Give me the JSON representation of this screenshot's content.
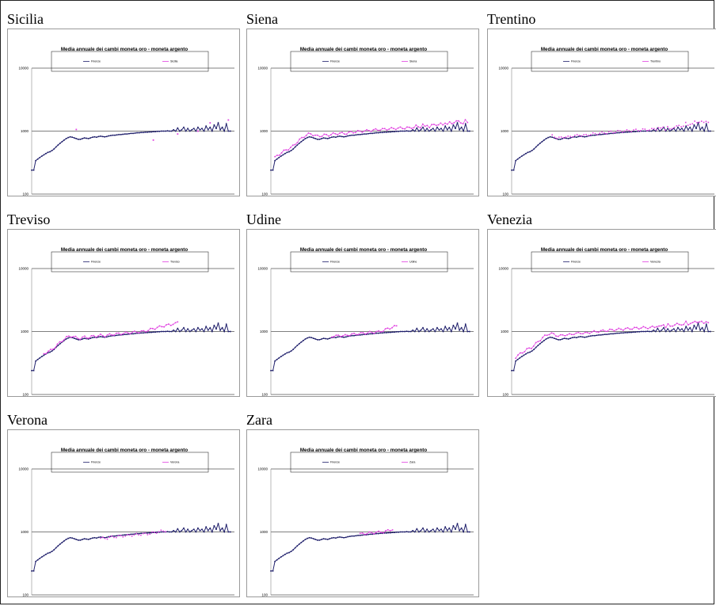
{
  "page": {
    "colors": {
      "firenze": "#1f1f6b",
      "region": "#e040e0",
      "grid": "#000000",
      "frame": "#222222"
    }
  },
  "chart_data": [
    {
      "type": "line",
      "panel_label": "Sicilia",
      "title": "Media annuale dei cambi moneta oro - moneta argento",
      "legend": [
        "Firenze",
        "Sicilia"
      ],
      "yscale": "log",
      "ylim": [
        100,
        10000
      ],
      "yticks": [
        "10000",
        "1000",
        "100"
      ],
      "series": [
        {
          "name": "Firenze",
          "style": "line-markers"
        },
        {
          "name": "Sicilia",
          "style": "sparse-points",
          "points": [
            [
              0.22,
              1060
            ],
            [
              0.6,
              720
            ],
            [
              0.72,
              900
            ],
            [
              0.82,
              1000
            ],
            [
              0.88,
              1350
            ],
            [
              0.97,
              1500
            ]
          ]
        }
      ]
    },
    {
      "type": "line",
      "panel_label": "Siena",
      "title": "Media annuale dei cambi moneta oro - moneta argento",
      "legend": [
        "Firenze",
        "Siena"
      ],
      "yscale": "log",
      "ylim": [
        100,
        10000
      ],
      "yticks": [
        "10000",
        "1000",
        "100"
      ],
      "series": [
        {
          "name": "Firenze",
          "style": "line-markers"
        },
        {
          "name": "Siena",
          "style": "dense-line",
          "range": [
            0.02,
            0.97
          ],
          "offset": 1.12,
          "end": 1500
        }
      ]
    },
    {
      "type": "line",
      "panel_label": "Trentino",
      "title": "Media annuale dei cambi moneta oro - moneta argento",
      "legend": [
        "Firenze",
        "Trentino"
      ],
      "yscale": "log",
      "ylim": [
        100,
        10000
      ],
      "yticks": [
        "10000",
        "1000",
        "100"
      ],
      "series": [
        {
          "name": "Firenze",
          "style": "line-markers"
        },
        {
          "name": "Trentino",
          "style": "scatter-range",
          "range": [
            0.2,
            0.97
          ],
          "offset": 1.05,
          "end": 1600
        }
      ]
    },
    {
      "type": "line",
      "panel_label": "Treviso",
      "title": "Media annuale dei cambi moneta oro - moneta argento",
      "legend": [
        "Firenze",
        "Treviso"
      ],
      "yscale": "log",
      "ylim": [
        100,
        10000
      ],
      "yticks": [
        "10000",
        "1000",
        "100"
      ],
      "series": [
        {
          "name": "Firenze",
          "style": "line-markers"
        },
        {
          "name": "Treviso",
          "style": "dense-line",
          "range": [
            0.06,
            0.72
          ],
          "offset": 1.05,
          "end": 1550
        }
      ]
    },
    {
      "type": "line",
      "panel_label": "Udine",
      "title": "Media annuale dei cambi moneta oro - moneta argento",
      "legend": [
        "Firenze",
        "Udine"
      ],
      "yscale": "log",
      "ylim": [
        100,
        10000
      ],
      "yticks": [
        "10000",
        "1000",
        "100"
      ],
      "series": [
        {
          "name": "Firenze",
          "style": "line-markers"
        },
        {
          "name": "Udine",
          "style": "dense-line",
          "range": [
            0.3,
            0.62
          ],
          "offset": 1.05,
          "end": 1350
        }
      ]
    },
    {
      "type": "line",
      "panel_label": "Venezia",
      "title": "Media annuale dei cambi moneta oro - moneta argento",
      "legend": [
        "Firenze",
        "Venezia"
      ],
      "yscale": "log",
      "ylim": [
        100,
        10000
      ],
      "yticks": [
        "10000",
        "1000",
        "100"
      ],
      "series": [
        {
          "name": "Firenze",
          "style": "line-markers"
        },
        {
          "name": "Venezia",
          "style": "dense-line",
          "range": [
            0.02,
            0.97
          ],
          "offset": 1.15,
          "end": 1500
        }
      ]
    },
    {
      "type": "line",
      "panel_label": "Verona",
      "title": "Media annuale dei cambi moneta oro - moneta argento",
      "legend": [
        "Firenze",
        "Verona"
      ],
      "yscale": "log",
      "ylim": [
        100,
        10000
      ],
      "yticks": [
        "10000",
        "1000",
        "100"
      ],
      "series": [
        {
          "name": "Firenze",
          "style": "line-markers"
        },
        {
          "name": "Verona",
          "style": "scatter-range",
          "range": [
            0.34,
            0.66
          ],
          "offset": 0.97,
          "end": 1100
        }
      ]
    },
    {
      "type": "line",
      "panel_label": "Zara",
      "title": "Media annuale dei cambi moneta oro - moneta argento",
      "legend": [
        "Firenze",
        "Zara"
      ],
      "yscale": "log",
      "ylim": [
        100,
        10000
      ],
      "yticks": [
        "10000",
        "1000",
        "100"
      ],
      "series": [
        {
          "name": "Firenze",
          "style": "line-markers"
        },
        {
          "name": "Zara",
          "style": "dense-line",
          "range": [
            0.44,
            0.6
          ],
          "offset": 1.05,
          "end": 1150
        }
      ]
    }
  ],
  "firenze_series": {
    "name": "Firenze",
    "points": [
      [
        0.0,
        240
      ],
      [
        0.01,
        240
      ],
      [
        0.02,
        340
      ],
      [
        0.03,
        360
      ],
      [
        0.04,
        380
      ],
      [
        0.05,
        400
      ],
      [
        0.06,
        420
      ],
      [
        0.07,
        440
      ],
      [
        0.08,
        460
      ],
      [
        0.09,
        470
      ],
      [
        0.1,
        490
      ],
      [
        0.11,
        520
      ],
      [
        0.12,
        560
      ],
      [
        0.13,
        600
      ],
      [
        0.14,
        640
      ],
      [
        0.15,
        680
      ],
      [
        0.16,
        720
      ],
      [
        0.17,
        760
      ],
      [
        0.18,
        790
      ],
      [
        0.19,
        810
      ],
      [
        0.2,
        800
      ],
      [
        0.21,
        780
      ],
      [
        0.22,
        760
      ],
      [
        0.23,
        740
      ],
      [
        0.24,
        740
      ],
      [
        0.25,
        760
      ],
      [
        0.26,
        780
      ],
      [
        0.27,
        770
      ],
      [
        0.28,
        760
      ],
      [
        0.29,
        780
      ],
      [
        0.3,
        800
      ],
      [
        0.31,
        810
      ],
      [
        0.32,
        800
      ],
      [
        0.33,
        820
      ],
      [
        0.34,
        830
      ],
      [
        0.35,
        820
      ],
      [
        0.36,
        810
      ],
      [
        0.37,
        820
      ],
      [
        0.38,
        840
      ],
      [
        0.39,
        850
      ],
      [
        0.4,
        860
      ],
      [
        0.41,
        860
      ],
      [
        0.42,
        870
      ],
      [
        0.43,
        880
      ],
      [
        0.44,
        880
      ],
      [
        0.45,
        890
      ],
      [
        0.46,
        900
      ],
      [
        0.47,
        900
      ],
      [
        0.48,
        910
      ],
      [
        0.49,
        920
      ],
      [
        0.5,
        920
      ],
      [
        0.51,
        930
      ],
      [
        0.52,
        940
      ],
      [
        0.53,
        940
      ],
      [
        0.54,
        950
      ],
      [
        0.55,
        950
      ],
      [
        0.56,
        960
      ],
      [
        0.57,
        960
      ],
      [
        0.58,
        970
      ],
      [
        0.59,
        970
      ],
      [
        0.6,
        980
      ],
      [
        0.61,
        980
      ],
      [
        0.62,
        990
      ],
      [
        0.63,
        990
      ],
      [
        0.64,
        1000
      ],
      [
        0.65,
        1000
      ],
      [
        0.66,
        1000
      ],
      [
        0.67,
        1010
      ],
      [
        0.68,
        1000
      ],
      [
        0.69,
        1000
      ],
      [
        0.7,
        1050
      ],
      [
        0.71,
        1000
      ],
      [
        0.72,
        1120
      ],
      [
        0.73,
        1000
      ],
      [
        0.74,
        1050
      ],
      [
        0.75,
        1150
      ],
      [
        0.76,
        1000
      ],
      [
        0.77,
        1100
      ],
      [
        0.78,
        1000
      ],
      [
        0.79,
        1050
      ],
      [
        0.8,
        1100
      ],
      [
        0.81,
        1000
      ],
      [
        0.82,
        1150
      ],
      [
        0.83,
        1050
      ],
      [
        0.84,
        1100
      ],
      [
        0.85,
        1000
      ],
      [
        0.86,
        1200
      ],
      [
        0.87,
        1050
      ],
      [
        0.88,
        1150
      ],
      [
        0.89,
        1000
      ],
      [
        0.9,
        1250
      ],
      [
        0.91,
        1100
      ],
      [
        0.92,
        1350
      ],
      [
        0.93,
        1050
      ],
      [
        0.94,
        1150
      ],
      [
        0.95,
        1000
      ],
      [
        0.96,
        1300
      ],
      [
        0.97,
        1000
      ],
      [
        0.98,
        1000
      ]
    ]
  }
}
